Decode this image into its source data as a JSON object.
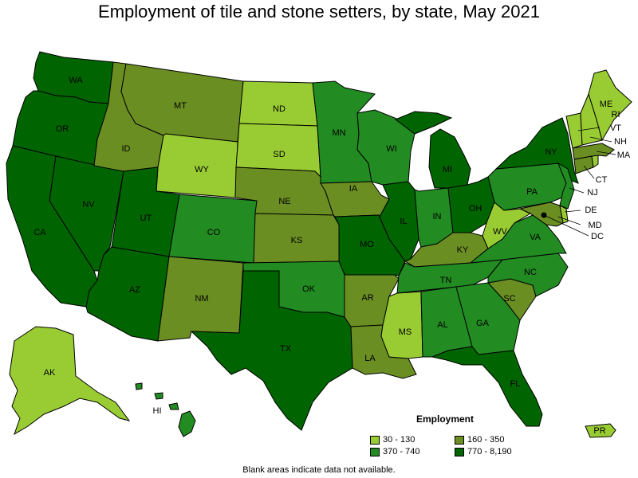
{
  "title": "Employment of tile and stone setters, by state, May 2021",
  "colors": {
    "c1": "#99cc33",
    "c2": "#6b8e23",
    "c3": "#228b22",
    "c4": "#006400",
    "none": "#ffffff"
  },
  "legend": {
    "title": "Employment",
    "items": [
      {
        "label": "30 - 130",
        "color": "#99cc33"
      },
      {
        "label": "160 - 350",
        "color": "#6b8e23"
      },
      {
        "label": "370 - 740",
        "color": "#228b22"
      },
      {
        "label": "770 - 8,190",
        "color": "#006400"
      }
    ]
  },
  "footnote": "Blank areas indicate data not available.",
  "states": {
    "WA": {
      "label": "WA",
      "range": "770 - 8,190"
    },
    "OR": {
      "label": "OR",
      "range": "770 - 8,190"
    },
    "CA": {
      "label": "CA",
      "range": "770 - 8,190"
    },
    "NV": {
      "label": "NV",
      "range": "770 - 8,190"
    },
    "ID": {
      "label": "ID",
      "range": "160 - 350"
    },
    "MT": {
      "label": "MT",
      "range": "160 - 350"
    },
    "WY": {
      "label": "WY",
      "range": "30 - 130"
    },
    "UT": {
      "label": "UT",
      "range": "770 - 8,190"
    },
    "AZ": {
      "label": "AZ",
      "range": "770 - 8,190"
    },
    "CO": {
      "label": "CO",
      "range": "370 - 740"
    },
    "NM": {
      "label": "NM",
      "range": "160 - 350"
    },
    "ND": {
      "label": "ND",
      "range": "30 - 130"
    },
    "SD": {
      "label": "SD",
      "range": "30 - 130"
    },
    "NE": {
      "label": "NE",
      "range": "160 - 350"
    },
    "KS": {
      "label": "KS",
      "range": "160 - 350"
    },
    "OK": {
      "label": "OK",
      "range": "370 - 740"
    },
    "TX": {
      "label": "TX",
      "range": "770 - 8,190"
    },
    "MN": {
      "label": "MN",
      "range": "370 - 740"
    },
    "IA": {
      "label": "IA",
      "range": "160 - 350"
    },
    "MO": {
      "label": "MO",
      "range": "770 - 8,190"
    },
    "AR": {
      "label": "AR",
      "range": "160 - 350"
    },
    "LA": {
      "label": "LA",
      "range": "160 - 350"
    },
    "WI": {
      "label": "WI",
      "range": "370 - 740"
    },
    "IL": {
      "label": "IL",
      "range": "770 - 8,190"
    },
    "MI": {
      "label": "MI",
      "range": "770 - 8,190"
    },
    "IN": {
      "label": "IN",
      "range": "370 - 740"
    },
    "OH": {
      "label": "OH",
      "range": "770 - 8,190"
    },
    "KY": {
      "label": "KY",
      "range": "160 - 350"
    },
    "TN": {
      "label": "TN",
      "range": "370 - 740"
    },
    "MS": {
      "label": "MS",
      "range": "30 - 130"
    },
    "AL": {
      "label": "AL",
      "range": "370 - 740"
    },
    "GA": {
      "label": "GA",
      "range": "370 - 740"
    },
    "FL": {
      "label": "FL",
      "range": "770 - 8,190"
    },
    "SC": {
      "label": "SC",
      "range": "160 - 350"
    },
    "NC": {
      "label": "NC",
      "range": "370 - 740"
    },
    "VA": {
      "label": "VA",
      "range": "370 - 740"
    },
    "WV": {
      "label": "WV",
      "range": "30 - 130"
    },
    "PA": {
      "label": "PA",
      "range": "370 - 740"
    },
    "NY": {
      "label": "NY",
      "range": "770 - 8,190"
    },
    "NJ": {
      "label": "NJ",
      "range": "370 - 740"
    },
    "DE": {
      "label": "DE",
      "range": "30 - 130"
    },
    "MD": {
      "label": "MD",
      "range": "160 - 350"
    },
    "DC": {
      "label": "DC",
      "range": "30 - 130"
    },
    "CT": {
      "label": "CT",
      "range": "160 - 350"
    },
    "MA": {
      "label": "MA",
      "range": "160 - 350"
    },
    "VT": {
      "label": "VT",
      "range": "30 - 130"
    },
    "NH": {
      "label": "NH",
      "range": "30 - 130"
    },
    "ME": {
      "label": "ME",
      "range": "30 - 130"
    },
    "RI": {
      "label": "RI",
      "range": "30 - 130"
    },
    "AK": {
      "label": "AK",
      "range": "30 - 130"
    },
    "HI": {
      "label": "HI",
      "range": "370 - 740"
    },
    "PR": {
      "label": "PR",
      "range": "30 - 130"
    }
  }
}
